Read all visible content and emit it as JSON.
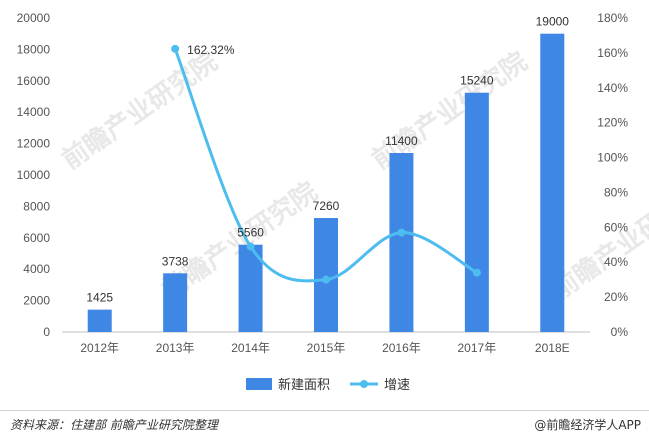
{
  "chart_data": {
    "type": "bar",
    "categories": [
      "2012年",
      "2013年",
      "2014年",
      "2015年",
      "2016年",
      "2017年",
      "2018E"
    ],
    "series": [
      {
        "name": "新建面积",
        "type": "bar",
        "axis": "left",
        "values": [
          1425,
          3738,
          5560,
          7260,
          11400,
          15240,
          19000
        ],
        "labels": [
          "1425",
          "3738",
          "5560",
          "7260",
          "11400",
          "15240",
          "19000"
        ],
        "color": "#3f87e5"
      },
      {
        "name": "增速",
        "type": "line",
        "axis": "right",
        "smooth": true,
        "values": [
          null,
          162.32,
          49,
          30,
          57,
          34,
          null
        ],
        "labels": [
          "",
          "162.32%",
          "",
          "",
          "",
          "",
          ""
        ],
        "color": "#4dbdf0"
      }
    ],
    "y_left": {
      "min": 0,
      "max": 20000,
      "ticks": [
        "0",
        "2000",
        "4000",
        "6000",
        "8000",
        "10000",
        "12000",
        "14000",
        "16000",
        "18000",
        "20000"
      ]
    },
    "y_right": {
      "min": 0,
      "max": 180,
      "ticks": [
        "0%",
        "20%",
        "40%",
        "60%",
        "80%",
        "100%",
        "120%",
        "140%",
        "160%",
        "180%"
      ]
    },
    "legend": {
      "position": "bottom",
      "items": [
        "新建面积",
        "增速"
      ]
    }
  },
  "watermark": "前瞻产业研究院",
  "footer": {
    "source": "资料来源：住建部 前瞻产业研究院整理",
    "brand": "@前瞻经济学人APP"
  }
}
